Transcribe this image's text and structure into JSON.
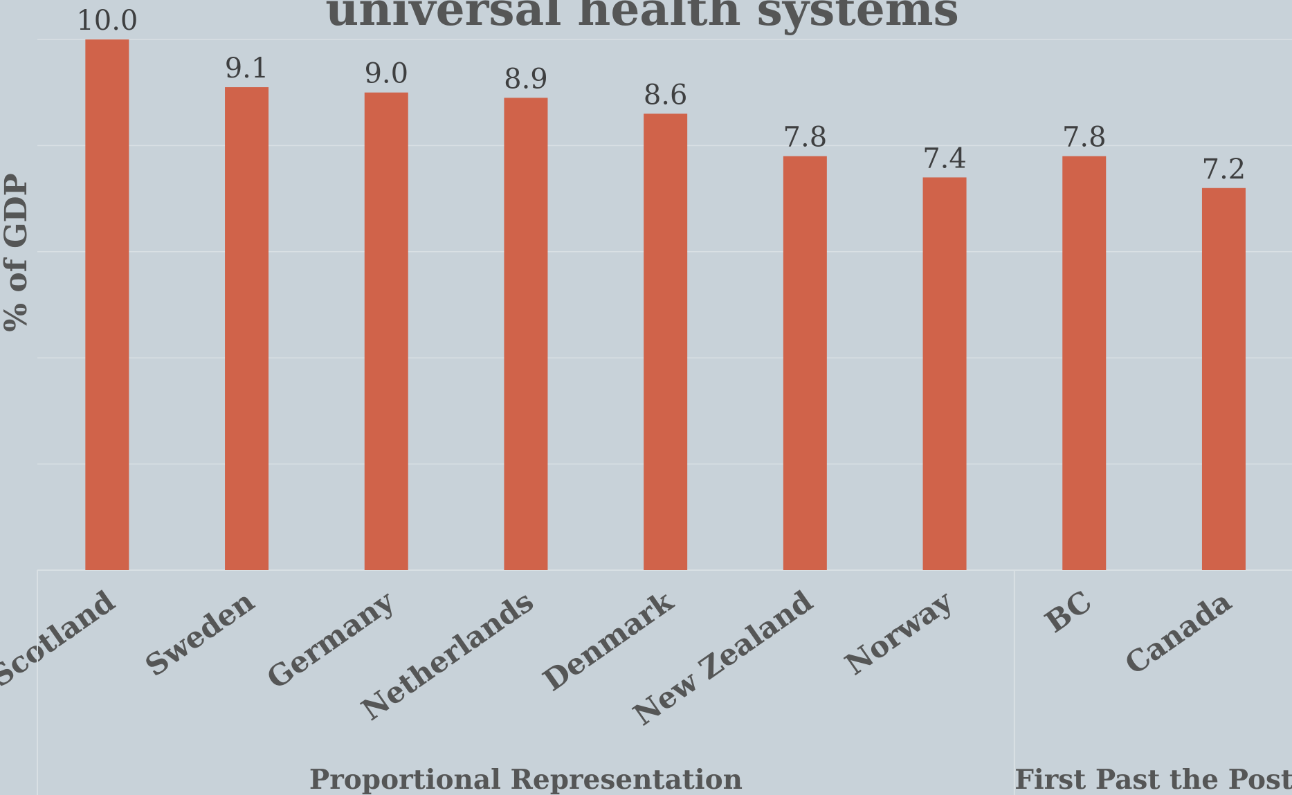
{
  "chart_data": {
    "type": "bar",
    "title": "universal health systems",
    "ylabel": "% of GDP",
    "xlabel": "",
    "ylim": [
      0,
      10
    ],
    "grid": true,
    "bar_color": "#d0634a",
    "background": "#c8d2d9",
    "text_color": "#555656",
    "categories": [
      "Scotland",
      "Sweden",
      "Germany",
      "Netherlands",
      "Denmark",
      "New Zealand",
      "Norway",
      "BC",
      "Canada"
    ],
    "values": [
      10.0,
      9.1,
      9.0,
      8.9,
      8.6,
      7.8,
      7.4,
      7.8,
      7.2
    ],
    "data_labels": [
      "10.0",
      "9.1",
      "9.0",
      "8.9",
      "8.6",
      "7.8",
      "7.4",
      "7.8",
      "7.2"
    ],
    "groups": [
      {
        "name": "Proportional Representation",
        "categories": [
          "Scotland",
          "Sweden",
          "Germany",
          "Netherlands",
          "Denmark",
          "New Zealand",
          "Norway"
        ]
      },
      {
        "name": "First Past the Post",
        "categories": [
          "BC",
          "Canada"
        ]
      }
    ]
  }
}
